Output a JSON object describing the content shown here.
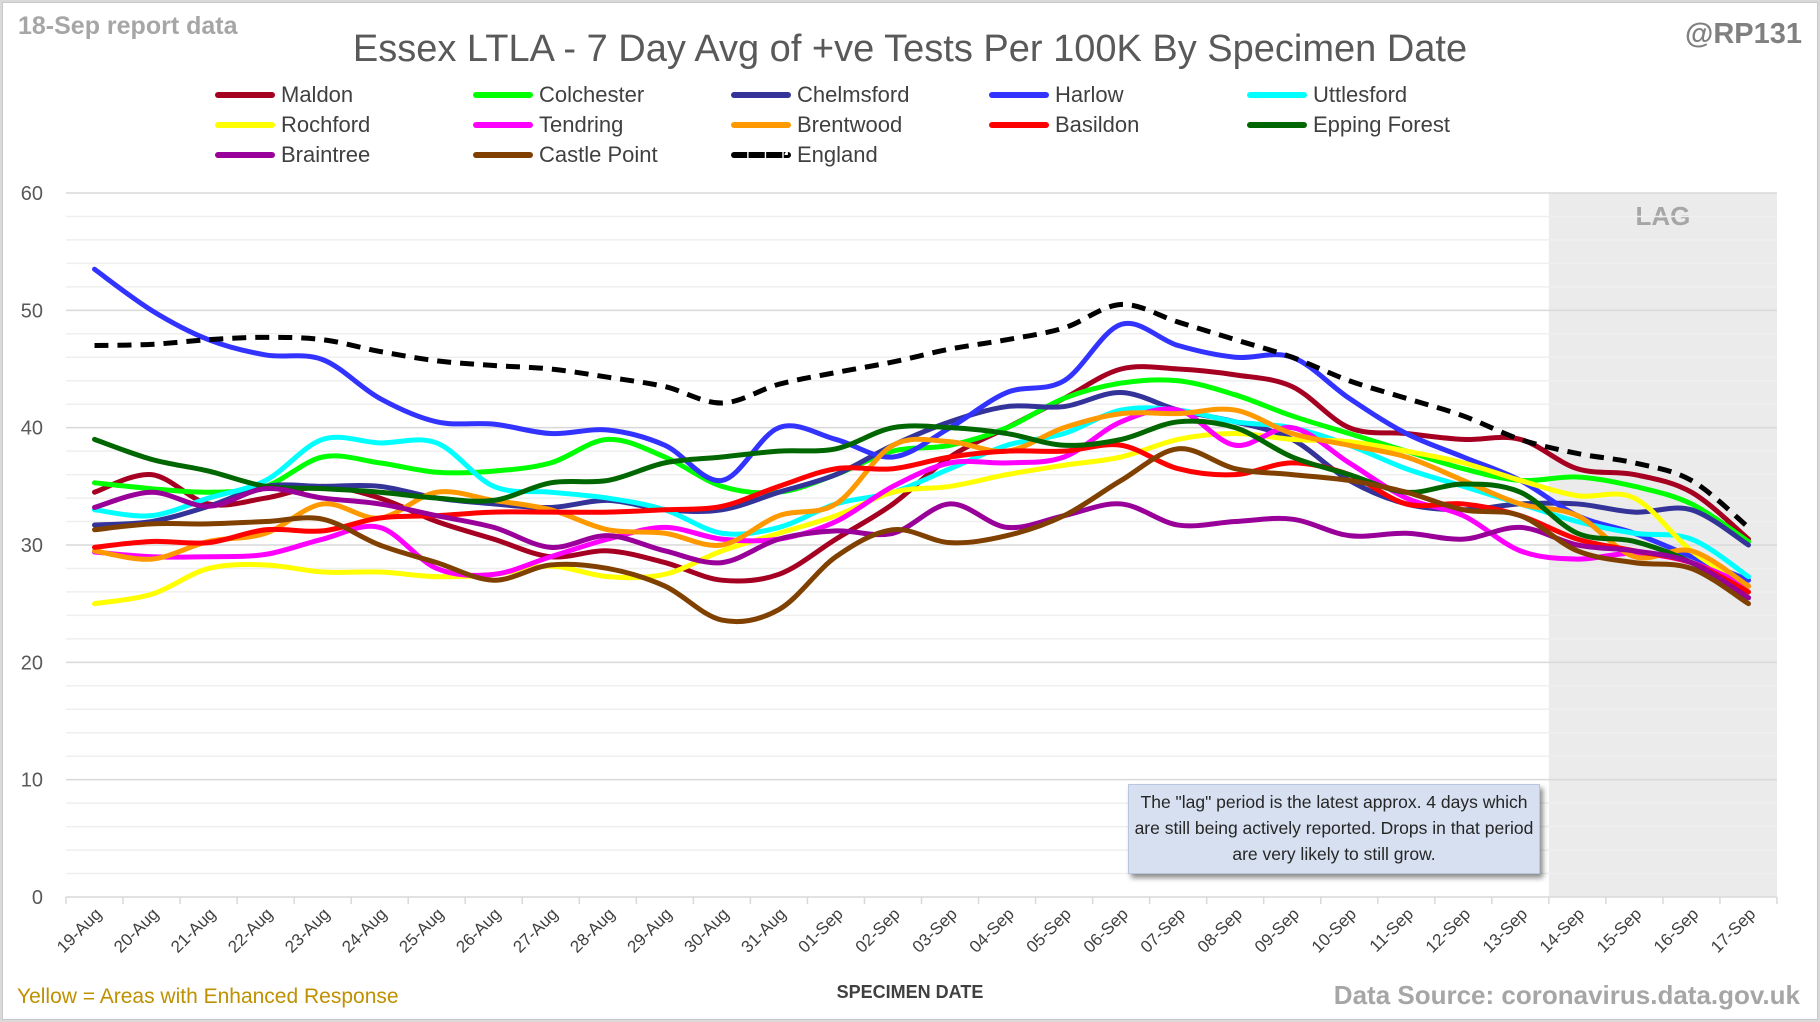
{
  "header": {
    "report_label": "18-Sep report data",
    "handle": "@RP131"
  },
  "footer": {
    "note": "Yellow = Areas with Enhanced Response",
    "source": "Data Source: coronavirus.data.gov.uk"
  },
  "lag_note": "The \"lag\" period is the latest approx. 4 days which are still being actively reported. Drops in that period are very likely to still grow.",
  "chart_data": {
    "type": "line",
    "title": "Essex LTLA - 7 Day Avg of +ve Tests Per 100K By Specimen Date",
    "xlabel": "SPECIMEN DATE",
    "ylabel": "",
    "ylim": [
      0,
      60
    ],
    "yticks": [
      0,
      10,
      20,
      30,
      40,
      50,
      60
    ],
    "grid": true,
    "minor_grid_step": 2,
    "legend_position": "top",
    "lag_band": {
      "label": "LAG",
      "from": "14-Sep",
      "to": "17-Sep"
    },
    "x": [
      "19-Aug",
      "20-Aug",
      "21-Aug",
      "22-Aug",
      "23-Aug",
      "24-Aug",
      "25-Aug",
      "26-Aug",
      "27-Aug",
      "28-Aug",
      "29-Aug",
      "30-Aug",
      "31-Aug",
      "01-Sep",
      "02-Sep",
      "03-Sep",
      "04-Sep",
      "05-Sep",
      "06-Sep",
      "07-Sep",
      "08-Sep",
      "09-Sep",
      "10-Sep",
      "11-Sep",
      "12-Sep",
      "13-Sep",
      "14-Sep",
      "15-Sep",
      "16-Sep",
      "17-Sep"
    ],
    "series": [
      {
        "name": "Maldon",
        "color": "#a50021",
        "dash": false,
        "values": [
          34.5,
          36.0,
          33.5,
          34.0,
          35.0,
          34.0,
          32.0,
          30.5,
          29.0,
          29.5,
          28.5,
          27.0,
          27.5,
          30.5,
          33.5,
          37.5,
          40.0,
          42.5,
          45.0,
          45.0,
          44.5,
          43.5,
          40.0,
          39.5,
          39.0,
          39.0,
          36.5,
          36.0,
          34.5,
          30.5
        ]
      },
      {
        "name": "Colchester",
        "color": "#00ff00",
        "dash": false,
        "values": [
          35.3,
          34.8,
          34.5,
          35.0,
          37.5,
          37.0,
          36.2,
          36.3,
          37.0,
          39.0,
          37.5,
          35.0,
          34.5,
          36.0,
          38.0,
          38.5,
          40.0,
          42.5,
          43.8,
          44.0,
          42.8,
          41.0,
          39.5,
          38.0,
          36.5,
          35.5,
          35.8,
          35.0,
          33.5,
          30.3
        ]
      },
      {
        "name": "Chelmsford",
        "color": "#333399",
        "dash": false,
        "values": [
          31.7,
          32.0,
          33.3,
          35.0,
          35.0,
          35.0,
          34.0,
          33.5,
          33.2,
          33.8,
          33.0,
          33.0,
          34.5,
          36.0,
          38.5,
          40.5,
          41.8,
          41.8,
          43.0,
          41.5,
          40.5,
          39.0,
          35.5,
          33.5,
          33.0,
          33.5,
          33.5,
          32.8,
          33.0,
          30.0
        ]
      },
      {
        "name": "Harlow",
        "color": "#3333ff",
        "dash": false,
        "values": [
          53.5,
          50.0,
          47.5,
          46.2,
          45.8,
          42.5,
          40.5,
          40.3,
          39.5,
          39.8,
          38.5,
          35.5,
          40.0,
          39.0,
          37.5,
          40.0,
          43.0,
          44.0,
          48.8,
          47.0,
          46.0,
          46.0,
          42.5,
          39.5,
          37.5,
          35.5,
          32.5,
          31.0,
          29.0,
          27.0
        ]
      },
      {
        "name": "Uttlesford",
        "color": "#00ffff",
        "dash": false,
        "values": [
          33.0,
          32.5,
          34.0,
          35.5,
          39.0,
          38.7,
          38.7,
          35.0,
          34.5,
          34.0,
          33.0,
          31.0,
          31.5,
          33.5,
          34.5,
          36.5,
          38.5,
          39.5,
          41.5,
          41.5,
          40.5,
          40.0,
          38.5,
          36.5,
          35.0,
          33.5,
          32.0,
          31.0,
          30.5,
          27.3
        ]
      },
      {
        "name": "Rochford",
        "color": "#ffff00",
        "dash": false,
        "values": [
          25.0,
          25.8,
          28.0,
          28.3,
          27.7,
          27.7,
          27.3,
          27.5,
          28.2,
          27.3,
          27.5,
          29.5,
          31.0,
          32.5,
          34.5,
          35.0,
          36.0,
          36.8,
          37.5,
          39.0,
          39.5,
          39.0,
          38.8,
          38.0,
          37.0,
          35.5,
          34.2,
          34.0,
          29.5,
          26.5
        ]
      },
      {
        "name": "Tendring",
        "color": "#ff00ff",
        "dash": false,
        "values": [
          29.4,
          29.0,
          29.0,
          29.2,
          30.5,
          31.5,
          28.0,
          27.5,
          29.0,
          30.5,
          31.5,
          30.5,
          30.5,
          32.0,
          35.0,
          37.0,
          37.0,
          37.5,
          40.5,
          41.5,
          38.5,
          40.0,
          37.0,
          34.0,
          32.5,
          29.5,
          28.8,
          29.3,
          28.5,
          26.5
        ]
      },
      {
        "name": "Brentwood",
        "color": "#ff9900",
        "dash": false,
        "values": [
          29.5,
          28.8,
          30.3,
          31.0,
          33.5,
          32.3,
          34.5,
          33.8,
          33.0,
          31.3,
          31.0,
          30.0,
          32.5,
          33.5,
          38.5,
          38.8,
          38.0,
          40.0,
          41.2,
          41.2,
          41.5,
          39.5,
          38.5,
          37.5,
          35.5,
          33.5,
          32.5,
          29.0,
          29.5,
          26.5
        ]
      },
      {
        "name": "Basildon",
        "color": "#ff0000",
        "dash": false,
        "values": [
          29.8,
          30.3,
          30.2,
          31.3,
          31.2,
          32.3,
          32.5,
          32.8,
          32.8,
          32.8,
          33.0,
          33.3,
          35.0,
          36.5,
          36.5,
          37.5,
          38.0,
          38.0,
          38.5,
          36.5,
          36.0,
          37.0,
          36.0,
          33.5,
          33.5,
          32.5,
          30.5,
          29.5,
          28.5,
          26.0
        ]
      },
      {
        "name": "Epping Forest",
        "color": "#006600",
        "dash": false,
        "values": [
          39.0,
          37.3,
          36.3,
          35.0,
          34.8,
          34.5,
          34.0,
          33.8,
          35.3,
          35.5,
          37.0,
          37.5,
          38.0,
          38.2,
          40.0,
          40.0,
          39.5,
          38.5,
          39.0,
          40.5,
          40.0,
          37.5,
          36.0,
          34.5,
          35.2,
          34.5,
          31.0,
          30.3,
          28.5,
          25.5
        ]
      },
      {
        "name": "Braintree",
        "color": "#990099",
        "dash": false,
        "values": [
          33.2,
          34.5,
          33.3,
          34.8,
          34.0,
          33.5,
          32.5,
          31.5,
          29.8,
          30.8,
          29.5,
          28.5,
          30.5,
          31.2,
          31.0,
          33.5,
          31.5,
          32.5,
          33.5,
          31.7,
          32.0,
          32.2,
          30.8,
          31.0,
          30.5,
          31.5,
          30.0,
          29.5,
          28.5,
          25.5
        ]
      },
      {
        "name": "Castle Point",
        "color": "#804000",
        "dash": false,
        "values": [
          31.3,
          31.8,
          31.8,
          32.0,
          32.2,
          30.0,
          28.5,
          27.0,
          28.3,
          28.0,
          26.5,
          23.6,
          24.5,
          29.0,
          31.3,
          30.2,
          30.8,
          32.5,
          35.5,
          38.2,
          36.5,
          36.0,
          35.5,
          34.5,
          33.0,
          32.5,
          29.5,
          28.5,
          28.0,
          25.0
        ]
      },
      {
        "name": "England",
        "color": "#000000",
        "dash": true,
        "values": [
          47.0,
          47.1,
          47.5,
          47.7,
          47.5,
          46.5,
          45.7,
          45.3,
          45.0,
          44.3,
          43.5,
          42.1,
          43.7,
          44.7,
          45.6,
          46.7,
          47.5,
          48.5,
          50.5,
          49.0,
          47.5,
          46.0,
          44.0,
          42.5,
          41.0,
          39.0,
          37.8,
          37.0,
          35.5,
          31.5
        ]
      }
    ]
  }
}
